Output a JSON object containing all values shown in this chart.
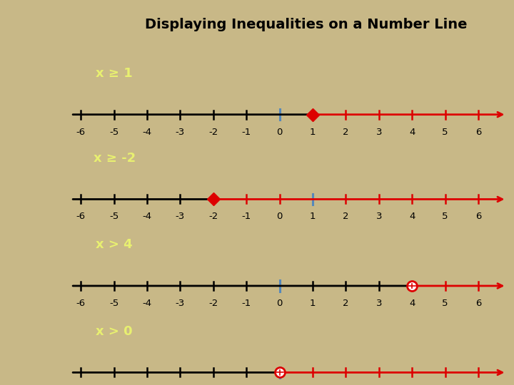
{
  "title": "Displaying Inequalities on a Number Line",
  "title_bg": "#6aaa1e",
  "title_color": "black",
  "bg_color": "#c8b887",
  "panel_bg": "#ffffff",
  "label_bg": "#3a8fd4",
  "label_text_color": "#e8f070",
  "highlight_color": "#dd0000",
  "tick_highlight_color": "#5588bb",
  "rows": [
    {
      "label": "x ≥ 1",
      "boundary": 1,
      "direction": "right",
      "closed": true,
      "blue_tick": 0
    },
    {
      "label": "x ≥ -2",
      "boundary": -2,
      "direction": "right",
      "closed": true,
      "blue_tick": 1
    },
    {
      "label": "x > 4",
      "boundary": 4,
      "direction": "right",
      "closed": false,
      "blue_tick": 0
    },
    {
      "label": "x > 0",
      "boundary": 0,
      "direction": "right",
      "closed": false,
      "blue_tick": 0
    }
  ],
  "xmin": -6,
  "xmax": 6
}
